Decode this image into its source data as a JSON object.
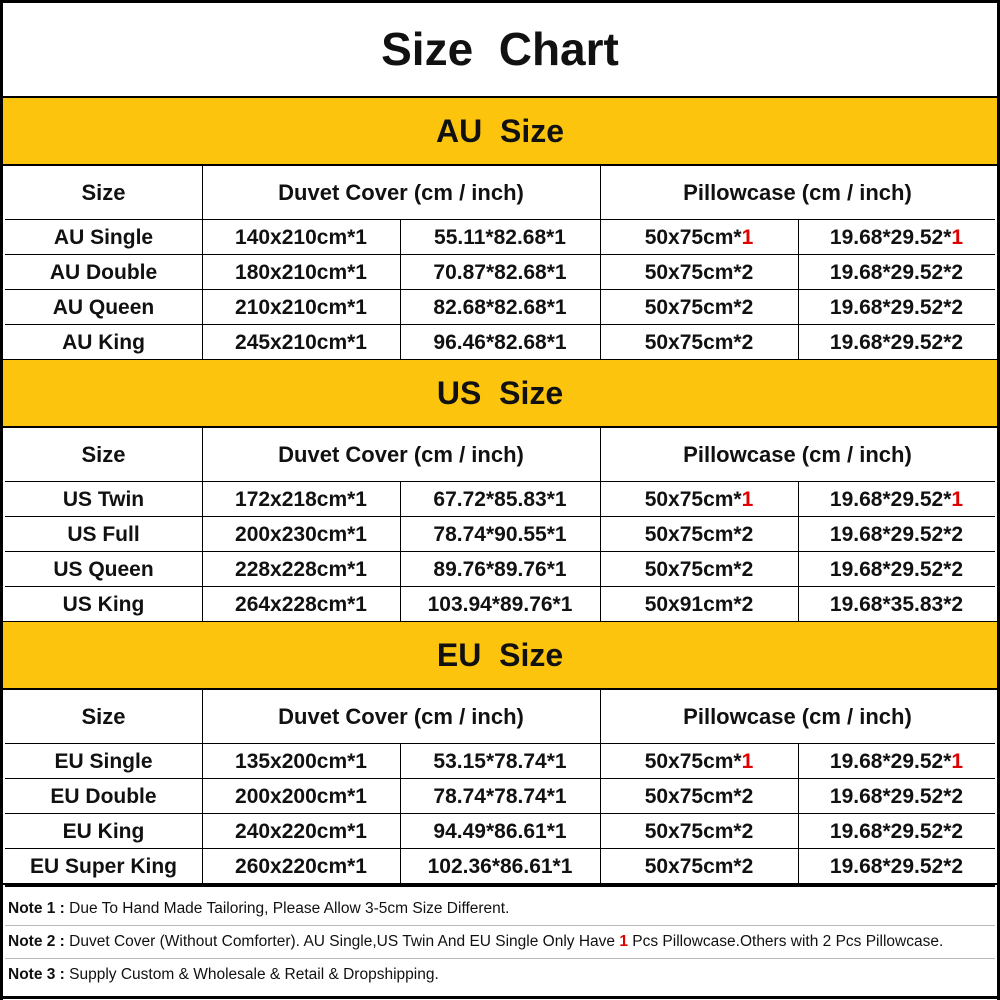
{
  "title": "Size  Chart",
  "highlight_color": "#e00000",
  "band_color": "#fcc40c",
  "sections": [
    {
      "heading": "AU  Size",
      "header": [
        "Size",
        "Duvet Cover (cm / inch)",
        "Pillowcase (cm / inch)"
      ],
      "rows": [
        [
          "AU Single",
          "140x210cm*1",
          "55.11*82.68*1",
          [
            "50x75cm*",
            "1"
          ],
          [
            "19.68*29.52*",
            "1"
          ]
        ],
        [
          "AU Double",
          "180x210cm*1",
          "70.87*82.68*1",
          "50x75cm*2",
          "19.68*29.52*2"
        ],
        [
          "AU Queen",
          "210x210cm*1",
          "82.68*82.68*1",
          "50x75cm*2",
          "19.68*29.52*2"
        ],
        [
          "AU King",
          "245x210cm*1",
          "96.46*82.68*1",
          "50x75cm*2",
          "19.68*29.52*2"
        ]
      ]
    },
    {
      "heading": "US  Size",
      "header": [
        "Size",
        "Duvet Cover (cm / inch)",
        "Pillowcase (cm / inch)"
      ],
      "rows": [
        [
          "US Twin",
          "172x218cm*1",
          "67.72*85.83*1",
          [
            "50x75cm*",
            "1"
          ],
          [
            "19.68*29.52*",
            "1"
          ]
        ],
        [
          "US Full",
          "200x230cm*1",
          "78.74*90.55*1",
          "50x75cm*2",
          "19.68*29.52*2"
        ],
        [
          "US Queen",
          "228x228cm*1",
          "89.76*89.76*1",
          "50x75cm*2",
          "19.68*29.52*2"
        ],
        [
          "US King",
          "264x228cm*1",
          "103.94*89.76*1",
          "50x91cm*2",
          "19.68*35.83*2"
        ]
      ]
    },
    {
      "heading": "EU  Size",
      "header": [
        "Size",
        "Duvet Cover (cm / inch)",
        "Pillowcase (cm / inch)"
      ],
      "rows": [
        [
          "EU Single",
          "135x200cm*1",
          "53.15*78.74*1",
          [
            "50x75cm*",
            "1"
          ],
          [
            "19.68*29.52*",
            "1"
          ]
        ],
        [
          "EU Double",
          "200x200cm*1",
          "78.74*78.74*1",
          "50x75cm*2",
          "19.68*29.52*2"
        ],
        [
          "EU King",
          "240x220cm*1",
          "94.49*86.61*1",
          "50x75cm*2",
          "19.68*29.52*2"
        ],
        [
          "EU Super King",
          "260x220cm*1",
          "102.36*86.61*1",
          "50x75cm*2",
          "19.68*29.52*2"
        ]
      ]
    }
  ],
  "notes": [
    {
      "label": "Note 1 :",
      "text": [
        "Due To Hand Made Tailoring, Please Allow 3-5cm Size Different."
      ]
    },
    {
      "label": "Note 2 :",
      "text": [
        "Duvet Cover (Without Comforter). AU Single,US Twin And EU Single Only Have ",
        "1",
        " Pcs Pillowcase.Others with 2 Pcs Pillowcase."
      ]
    },
    {
      "label": "Note 3 :",
      "text": [
        "Supply Custom & Wholesale & Retail & Dropshipping."
      ]
    }
  ]
}
